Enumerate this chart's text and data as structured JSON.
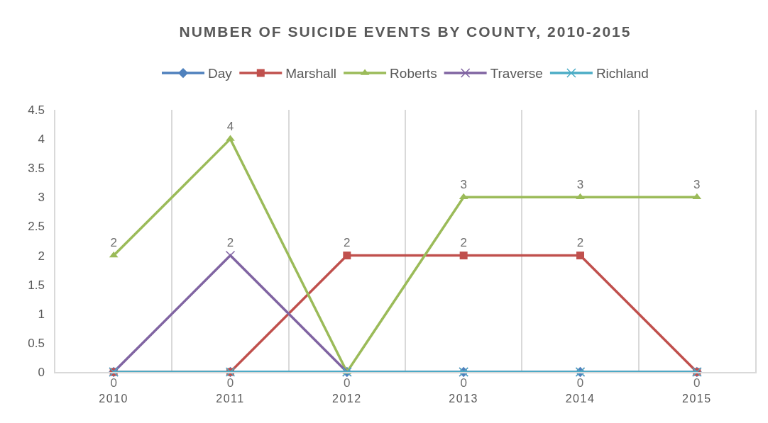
{
  "chart_data": {
    "type": "line",
    "title": "NUMBER OF SUICIDE EVENTS BY COUNTY, 2010-2015",
    "categories": [
      "2010",
      "2011",
      "2012",
      "2013",
      "2014",
      "2015"
    ],
    "series": [
      {
        "name": "Day",
        "color": "#4f81bd",
        "marker": "diamond",
        "values": [
          0,
          0,
          0,
          0,
          0,
          0
        ],
        "value_labels": [
          null,
          null,
          null,
          null,
          null,
          null
        ]
      },
      {
        "name": "Marshall",
        "color": "#c0504d",
        "marker": "square",
        "values": [
          0,
          0,
          2,
          2,
          2,
          0
        ],
        "value_labels": [
          null,
          null,
          "2",
          "2",
          "2",
          null
        ]
      },
      {
        "name": "Roberts",
        "color": "#9bbb59",
        "marker": "triangle",
        "values": [
          2,
          4,
          0,
          3,
          3,
          3
        ],
        "value_labels": [
          "2",
          "4",
          null,
          "3",
          "3",
          "3"
        ]
      },
      {
        "name": "Traverse",
        "color": "#8064a2",
        "marker": "cross",
        "values": [
          0,
          2,
          0,
          0,
          0,
          0
        ],
        "value_labels": [
          null,
          "2",
          null,
          null,
          null,
          null
        ]
      },
      {
        "name": "Richland",
        "color": "#4bacc6",
        "marker": "cross",
        "values": [
          0,
          0,
          0,
          0,
          0,
          0
        ],
        "value_labels": [
          "0",
          "0",
          "0",
          "0",
          "0",
          "0"
        ]
      }
    ],
    "ylim": [
      0,
      4.5
    ],
    "yticks": [
      0,
      0.5,
      1,
      1.5,
      2,
      2.5,
      3,
      3.5,
      4,
      4.5
    ],
    "grid": "x",
    "legend": "top",
    "line_style": "solid"
  }
}
